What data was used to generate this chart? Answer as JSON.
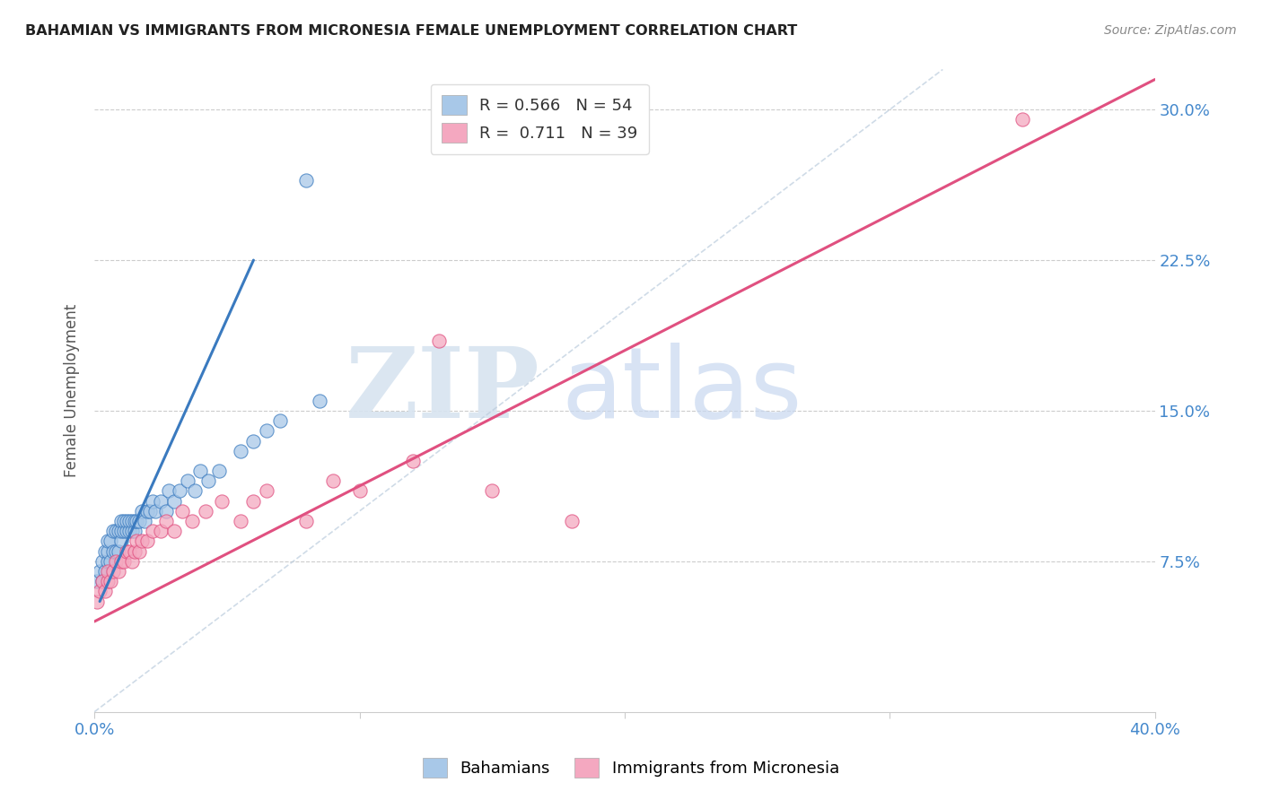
{
  "title": "BAHAMIAN VS IMMIGRANTS FROM MICRONESIA FEMALE UNEMPLOYMENT CORRELATION CHART",
  "source": "Source: ZipAtlas.com",
  "ylabel": "Female Unemployment",
  "xmin": 0.0,
  "xmax": 0.4,
  "ymin": 0.0,
  "ymax": 0.32,
  "legend_r1": "R = 0.566",
  "legend_n1": "N = 54",
  "legend_r2": "R =  0.711",
  "legend_n2": "N = 39",
  "color_blue": "#a8c8e8",
  "color_pink": "#f4a8c0",
  "color_blue_line": "#3a7abf",
  "color_pink_line": "#e05080",
  "watermark_zip": "ZIP",
  "watermark_atlas": "atlas",
  "blue_scatter_x": [
    0.001,
    0.002,
    0.003,
    0.003,
    0.004,
    0.004,
    0.005,
    0.005,
    0.005,
    0.006,
    0.006,
    0.007,
    0.007,
    0.008,
    0.008,
    0.009,
    0.009,
    0.01,
    0.01,
    0.01,
    0.011,
    0.011,
    0.012,
    0.012,
    0.013,
    0.013,
    0.014,
    0.014,
    0.015,
    0.015,
    0.016,
    0.017,
    0.018,
    0.019,
    0.02,
    0.021,
    0.022,
    0.023,
    0.025,
    0.027,
    0.028,
    0.03,
    0.032,
    0.035,
    0.038,
    0.04,
    0.043,
    0.047,
    0.055,
    0.06,
    0.065,
    0.07,
    0.085,
    0.08
  ],
  "blue_scatter_y": [
    0.065,
    0.07,
    0.065,
    0.075,
    0.07,
    0.08,
    0.075,
    0.08,
    0.085,
    0.075,
    0.085,
    0.08,
    0.09,
    0.08,
    0.09,
    0.08,
    0.09,
    0.085,
    0.09,
    0.095,
    0.09,
    0.095,
    0.09,
    0.095,
    0.09,
    0.095,
    0.09,
    0.095,
    0.09,
    0.095,
    0.095,
    0.095,
    0.1,
    0.095,
    0.1,
    0.1,
    0.105,
    0.1,
    0.105,
    0.1,
    0.11,
    0.105,
    0.11,
    0.115,
    0.11,
    0.12,
    0.115,
    0.12,
    0.13,
    0.135,
    0.14,
    0.145,
    0.155,
    0.265
  ],
  "pink_scatter_x": [
    0.001,
    0.002,
    0.003,
    0.004,
    0.005,
    0.005,
    0.006,
    0.007,
    0.008,
    0.009,
    0.01,
    0.011,
    0.012,
    0.013,
    0.014,
    0.015,
    0.016,
    0.017,
    0.018,
    0.02,
    0.022,
    0.025,
    0.027,
    0.03,
    0.033,
    0.037,
    0.042,
    0.048,
    0.055,
    0.06,
    0.065,
    0.08,
    0.09,
    0.1,
    0.12,
    0.13,
    0.15,
    0.18,
    0.35
  ],
  "pink_scatter_y": [
    0.055,
    0.06,
    0.065,
    0.06,
    0.065,
    0.07,
    0.065,
    0.07,
    0.075,
    0.07,
    0.075,
    0.075,
    0.08,
    0.08,
    0.075,
    0.08,
    0.085,
    0.08,
    0.085,
    0.085,
    0.09,
    0.09,
    0.095,
    0.09,
    0.1,
    0.095,
    0.1,
    0.105,
    0.095,
    0.105,
    0.11,
    0.095,
    0.115,
    0.11,
    0.125,
    0.185,
    0.11,
    0.095,
    0.295
  ],
  "blue_line_x": [
    0.002,
    0.06
  ],
  "blue_line_y": [
    0.055,
    0.225
  ],
  "pink_line_x": [
    0.0,
    0.4
  ],
  "pink_line_y": [
    0.045,
    0.315
  ],
  "diag_line_x": [
    0.0,
    0.32
  ],
  "diag_line_y": [
    0.0,
    0.32
  ],
  "ytick_vals": [
    0.075,
    0.15,
    0.225,
    0.3
  ],
  "ytick_labels": [
    "7.5%",
    "15.0%",
    "22.5%",
    "30.0%"
  ],
  "xtick_vals": [
    0.0,
    0.1,
    0.2,
    0.3,
    0.4
  ],
  "xtick_labels": [
    "0.0%",
    "",
    "",
    "",
    "40.0%"
  ]
}
